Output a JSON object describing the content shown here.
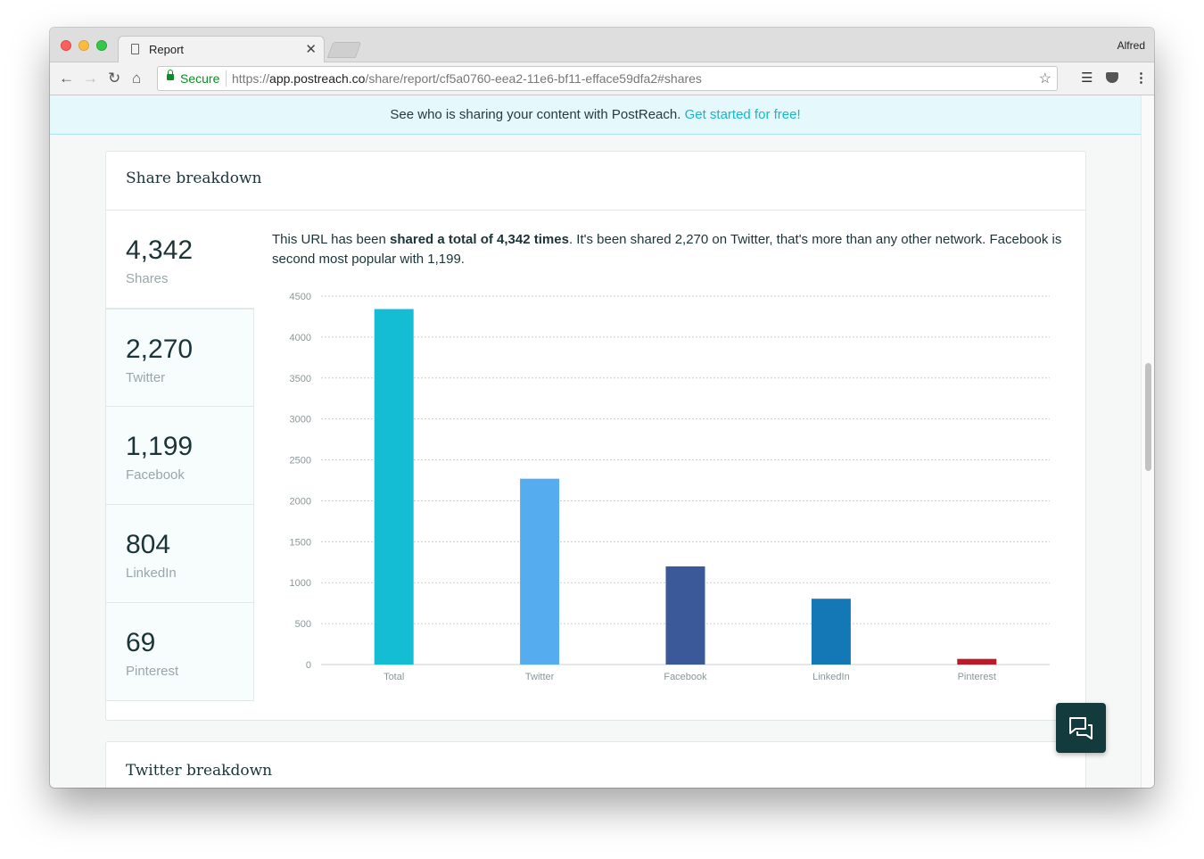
{
  "browser": {
    "tab_title": "Report",
    "user_name": "Alfred",
    "secure_label": "Secure",
    "url_scheme": "https://",
    "url_host": "app.postreach.co",
    "url_path": "/share/report/cf5a0760-eea2-11e6-bf11-efface59dfa2#shares",
    "icons": [
      "back-icon",
      "forward-icon",
      "reload-icon",
      "home-icon",
      "lock-icon",
      "star-icon",
      "buffer-icon",
      "pocket-icon",
      "menu-icon"
    ]
  },
  "banner": {
    "text": "See who is sharing your content with PostReach.",
    "link": "Get started for free!"
  },
  "share_breakdown": {
    "title": "Share breakdown",
    "stats": [
      {
        "value": "4,342",
        "label": "Shares"
      },
      {
        "value": "2,270",
        "label": "Twitter"
      },
      {
        "value": "1,199",
        "label": "Facebook"
      },
      {
        "value": "804",
        "label": "LinkedIn"
      },
      {
        "value": "69",
        "label": "Pinterest"
      }
    ],
    "summary_pre": "This URL has been ",
    "summary_bold": "shared a total of 4,342 times",
    "summary_post": ". It's been shared 2,270 on Twitter, that's more than any other network. Facebook is second most popular with 1,199."
  },
  "twitter_breakdown": {
    "title": "Twitter breakdown"
  },
  "chat_icon": "chat-icon",
  "chart_data": {
    "type": "bar",
    "categories": [
      "Total",
      "Twitter",
      "Facebook",
      "LinkedIn",
      "Pinterest"
    ],
    "values": [
      4342,
      2270,
      1199,
      804,
      69
    ],
    "colors": [
      "#14bdd4",
      "#55acee",
      "#3b5998",
      "#1578b6",
      "#bd1928"
    ],
    "yticks": [
      0,
      500,
      1000,
      1500,
      2000,
      2500,
      3000,
      3500,
      4000,
      4500
    ],
    "ylim": [
      0,
      4500
    ],
    "grid": true,
    "title": "",
    "xlabel": "",
    "ylabel": ""
  }
}
